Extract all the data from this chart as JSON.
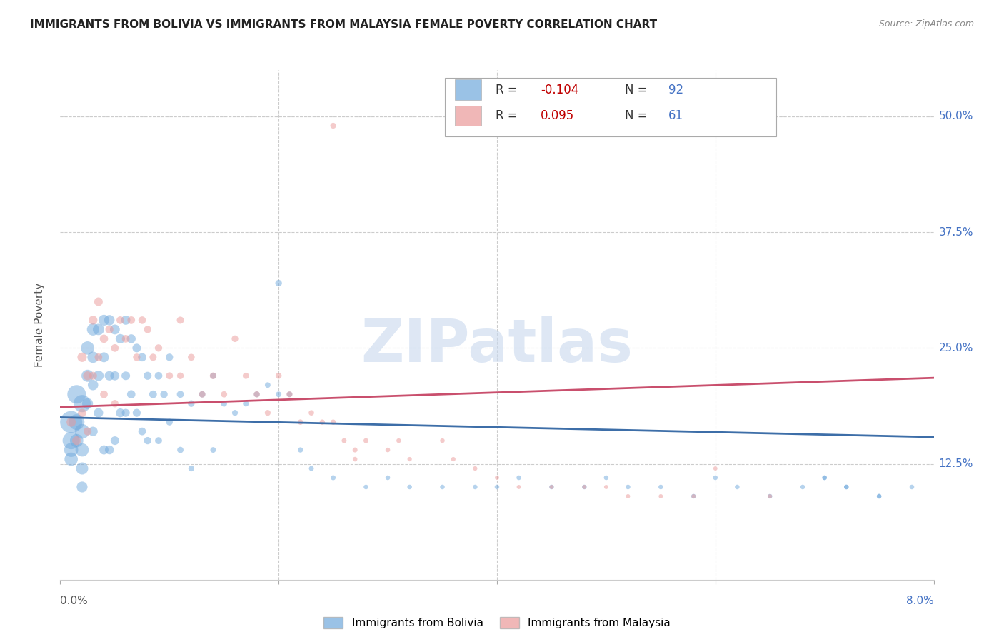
{
  "title": "IMMIGRANTS FROM BOLIVIA VS IMMIGRANTS FROM MALAYSIA FEMALE POVERTY CORRELATION CHART",
  "source": "Source: ZipAtlas.com",
  "ylabel": "Female Poverty",
  "ytick_labels": [
    "50.0%",
    "37.5%",
    "25.0%",
    "12.5%"
  ],
  "ytick_values": [
    50.0,
    37.5,
    25.0,
    12.5
  ],
  "xlim": [
    0.0,
    8.0
  ],
  "ylim": [
    0.0,
    55.0
  ],
  "bolivia_R": -0.104,
  "bolivia_N": 92,
  "malaysia_R": 0.095,
  "malaysia_N": 61,
  "bolivia_color": "#6fa8dc",
  "malaysia_color": "#ea9999",
  "bolivia_line_color": "#3d6ea8",
  "malaysia_line_color": "#c94f6d",
  "legend_label_bolivia": "Immigrants from Bolivia",
  "legend_label_malaysia": "Immigrants from Malaysia",
  "watermark": "ZIPatlas",
  "bolivia_x": [
    0.1,
    0.1,
    0.1,
    0.1,
    0.15,
    0.15,
    0.15,
    0.2,
    0.2,
    0.2,
    0.2,
    0.2,
    0.25,
    0.25,
    0.25,
    0.3,
    0.3,
    0.3,
    0.3,
    0.35,
    0.35,
    0.35,
    0.4,
    0.4,
    0.4,
    0.45,
    0.45,
    0.45,
    0.5,
    0.5,
    0.5,
    0.55,
    0.55,
    0.6,
    0.6,
    0.6,
    0.65,
    0.65,
    0.7,
    0.7,
    0.75,
    0.75,
    0.8,
    0.8,
    0.85,
    0.9,
    0.9,
    0.95,
    1.0,
    1.0,
    1.1,
    1.1,
    1.2,
    1.2,
    1.3,
    1.4,
    1.4,
    1.5,
    1.6,
    1.7,
    1.8,
    1.9,
    2.0,
    2.0,
    2.1,
    2.2,
    2.3,
    2.5,
    2.8,
    3.0,
    3.2,
    3.5,
    3.8,
    4.0,
    4.2,
    4.5,
    4.8,
    5.0,
    5.2,
    5.5,
    5.8,
    6.0,
    6.2,
    6.5,
    6.8,
    7.0,
    7.2,
    7.5,
    7.0,
    7.2,
    7.5,
    7.8
  ],
  "bolivia_y": [
    17.0,
    15.0,
    14.0,
    13.0,
    20.0,
    17.0,
    15.0,
    19.0,
    16.0,
    14.0,
    12.0,
    10.0,
    25.0,
    22.0,
    19.0,
    27.0,
    24.0,
    21.0,
    16.0,
    27.0,
    22.0,
    18.0,
    28.0,
    24.0,
    14.0,
    28.0,
    22.0,
    14.0,
    27.0,
    22.0,
    15.0,
    26.0,
    18.0,
    28.0,
    22.0,
    18.0,
    26.0,
    20.0,
    25.0,
    18.0,
    24.0,
    16.0,
    22.0,
    15.0,
    20.0,
    22.0,
    15.0,
    20.0,
    24.0,
    17.0,
    20.0,
    14.0,
    19.0,
    12.0,
    20.0,
    22.0,
    14.0,
    19.0,
    18.0,
    19.0,
    20.0,
    21.0,
    32.0,
    20.0,
    20.0,
    14.0,
    12.0,
    11.0,
    10.0,
    11.0,
    10.0,
    10.0,
    10.0,
    10.0,
    11.0,
    10.0,
    10.0,
    11.0,
    10.0,
    10.0,
    9.0,
    11.0,
    10.0,
    9.0,
    10.0,
    11.0,
    10.0,
    9.0,
    11.0,
    10.0,
    9.0,
    10.0
  ],
  "bolivia_size": [
    500,
    300,
    200,
    180,
    350,
    250,
    180,
    300,
    220,
    180,
    150,
    120,
    180,
    150,
    120,
    150,
    130,
    110,
    90,
    130,
    110,
    90,
    120,
    100,
    85,
    110,
    90,
    80,
    100,
    85,
    75,
    90,
    80,
    85,
    75,
    65,
    80,
    70,
    75,
    65,
    70,
    60,
    65,
    55,
    60,
    60,
    50,
    55,
    55,
    45,
    50,
    40,
    45,
    35,
    40,
    40,
    32,
    38,
    35,
    35,
    35,
    32,
    45,
    32,
    32,
    28,
    25,
    25,
    22,
    22,
    22,
    22,
    22,
    22,
    22,
    22,
    22,
    22,
    22,
    22,
    22,
    22,
    22,
    22,
    22,
    22,
    22,
    22,
    22,
    22,
    22,
    22
  ],
  "malaysia_x": [
    0.1,
    0.15,
    0.2,
    0.2,
    0.25,
    0.25,
    0.3,
    0.3,
    0.35,
    0.35,
    0.4,
    0.4,
    0.45,
    0.5,
    0.5,
    0.55,
    0.6,
    0.65,
    0.7,
    0.75,
    0.8,
    0.85,
    0.9,
    1.0,
    1.1,
    1.1,
    1.2,
    1.3,
    1.4,
    1.5,
    1.6,
    1.7,
    1.8,
    1.9,
    2.0,
    2.1,
    2.2,
    2.3,
    2.4,
    2.5,
    2.6,
    2.7,
    2.8,
    3.0,
    3.1,
    3.2,
    3.5,
    3.6,
    3.8,
    4.0,
    4.2,
    4.5,
    4.8,
    5.0,
    5.2,
    5.5,
    5.8,
    6.0,
    6.5,
    2.7,
    2.5
  ],
  "malaysia_y": [
    17.0,
    15.0,
    24.0,
    18.0,
    22.0,
    16.0,
    28.0,
    22.0,
    30.0,
    24.0,
    26.0,
    20.0,
    27.0,
    25.0,
    19.0,
    28.0,
    26.0,
    28.0,
    24.0,
    28.0,
    27.0,
    24.0,
    25.0,
    22.0,
    28.0,
    22.0,
    24.0,
    20.0,
    22.0,
    20.0,
    26.0,
    22.0,
    20.0,
    18.0,
    22.0,
    20.0,
    17.0,
    18.0,
    17.0,
    17.0,
    15.0,
    13.0,
    15.0,
    14.0,
    15.0,
    13.0,
    15.0,
    13.0,
    12.0,
    11.0,
    10.0,
    10.0,
    10.0,
    10.0,
    9.0,
    9.0,
    9.0,
    12.0,
    9.0,
    14.0,
    49.0
  ],
  "malaysia_size": [
    90,
    80,
    90,
    70,
    80,
    65,
    80,
    65,
    75,
    60,
    70,
    60,
    65,
    60,
    55,
    60,
    60,
    60,
    55,
    58,
    55,
    52,
    55,
    50,
    52,
    45,
    48,
    42,
    45,
    40,
    45,
    40,
    38,
    35,
    38,
    35,
    30,
    30,
    28,
    28,
    25,
    22,
    25,
    22,
    22,
    20,
    22,
    20,
    20,
    18,
    18,
    18,
    18,
    18,
    18,
    18,
    18,
    18,
    18,
    25,
    35
  ]
}
